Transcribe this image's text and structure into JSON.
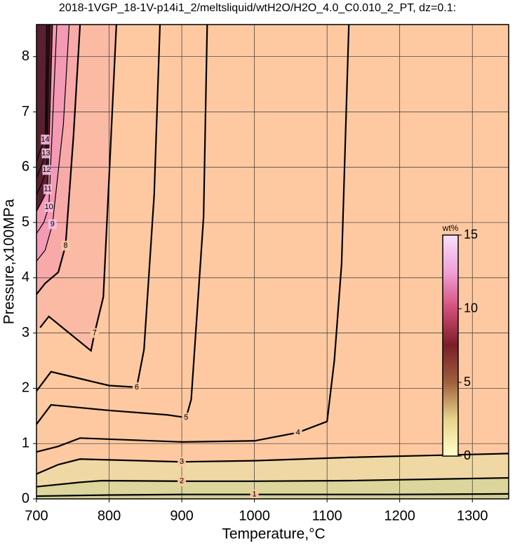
{
  "chart_data": {
    "type": "contour",
    "title": "2018-1VGP_18-1V-p14i1_2/meltsliquid/wtH2O/H2O_4.0_C0.010_2_PT, dz=0.1:",
    "xlabel": "Temperature,°C",
    "ylabel": "Pressure,x100MPa",
    "xlim": [
      700,
      1350
    ],
    "ylim": [
      0,
      8.58
    ],
    "xticks": [
      700,
      800,
      900,
      1000,
      1100,
      1200,
      1300
    ],
    "yticks": [
      0,
      1,
      2,
      3,
      4,
      5,
      6,
      7,
      8
    ],
    "grid": true,
    "line_color": "#000000",
    "contours": [
      {
        "level": 1,
        "x": [
          700,
          800,
          900,
          1000,
          1100,
          1200,
          1350
        ],
        "y": [
          0.05,
          0.07,
          0.08,
          0.08,
          0.08,
          0.08,
          0.09
        ]
      },
      {
        "level": 2,
        "x": [
          700,
          760,
          790,
          900,
          1000,
          1130,
          1350
        ],
        "y": [
          0.22,
          0.3,
          0.33,
          0.32,
          0.32,
          0.33,
          0.38
        ]
      },
      {
        "level": 3,
        "x": [
          700,
          730,
          760,
          900,
          1000,
          1130,
          1350
        ],
        "y": [
          0.45,
          0.62,
          0.72,
          0.67,
          0.69,
          0.75,
          0.82
        ]
      },
      {
        "level": 4,
        "x": [
          700,
          730,
          760,
          900,
          1000,
          1060,
          1100,
          1110,
          1120,
          1130
        ],
        "y": [
          0.85,
          0.95,
          1.1,
          1.03,
          1.05,
          1.2,
          1.4,
          2.5,
          4.25,
          8.58
        ]
      },
      {
        "level": 5,
        "x": [
          700,
          720,
          800,
          880,
          906,
          913,
          930,
          935
        ],
        "y": [
          1.35,
          1.7,
          1.6,
          1.52,
          1.47,
          1.8,
          5.1,
          8.58
        ]
      },
      {
        "level": 6,
        "x": [
          700,
          720,
          800,
          838,
          848,
          862,
          870
        ],
        "y": [
          1.95,
          2.3,
          2.05,
          2.02,
          2.7,
          5.5,
          8.58
        ]
      },
      {
        "level": 7,
        "x": [
          705,
          717,
          745,
          775,
          780,
          792,
          801,
          810
        ],
        "y": [
          3.1,
          3.3,
          3.0,
          2.68,
          3.0,
          3.65,
          6.1,
          8.58
        ]
      },
      {
        "level": 8,
        "x": [
          700,
          712,
          730,
          740,
          751,
          760
        ],
        "y": [
          3.7,
          3.9,
          4.1,
          4.58,
          6.58,
          8.58
        ]
      },
      {
        "level": 9,
        "x": [
          700,
          712,
          722,
          737,
          745
        ],
        "y": [
          4.3,
          4.5,
          4.97,
          6.77,
          8.58
        ]
      },
      {
        "level": 10,
        "x": [
          700,
          710,
          717,
          728
        ],
        "y": [
          4.8,
          5.0,
          5.28,
          8.58
        ]
      },
      {
        "level": 11,
        "x": [
          700,
          708,
          715.5,
          722
        ],
        "y": [
          5.2,
          5.4,
          5.6,
          8.58
        ]
      },
      {
        "level": 12,
        "x": [
          700,
          707,
          714,
          718
        ],
        "y": [
          5.5,
          5.7,
          5.95,
          8.58
        ]
      },
      {
        "level": 13,
        "x": [
          700,
          706,
          713,
          716
        ],
        "y": [
          5.8,
          6.0,
          6.25,
          8.58
        ]
      },
      {
        "level": 14,
        "x": [
          700,
          705,
          712,
          714
        ],
        "y": [
          6.1,
          6.3,
          6.5,
          8.58
        ]
      }
    ],
    "colorbar": {
      "label": "wt%",
      "lim": [
        0,
        15
      ],
      "ticks": [
        0,
        5,
        10,
        15
      ],
      "colormap": [
        "#ffffc8",
        "#e8d48c",
        "#a0603c",
        "#7a1e28",
        "#d24e78",
        "#f0a0d8",
        "#f8e0f8"
      ]
    }
  }
}
